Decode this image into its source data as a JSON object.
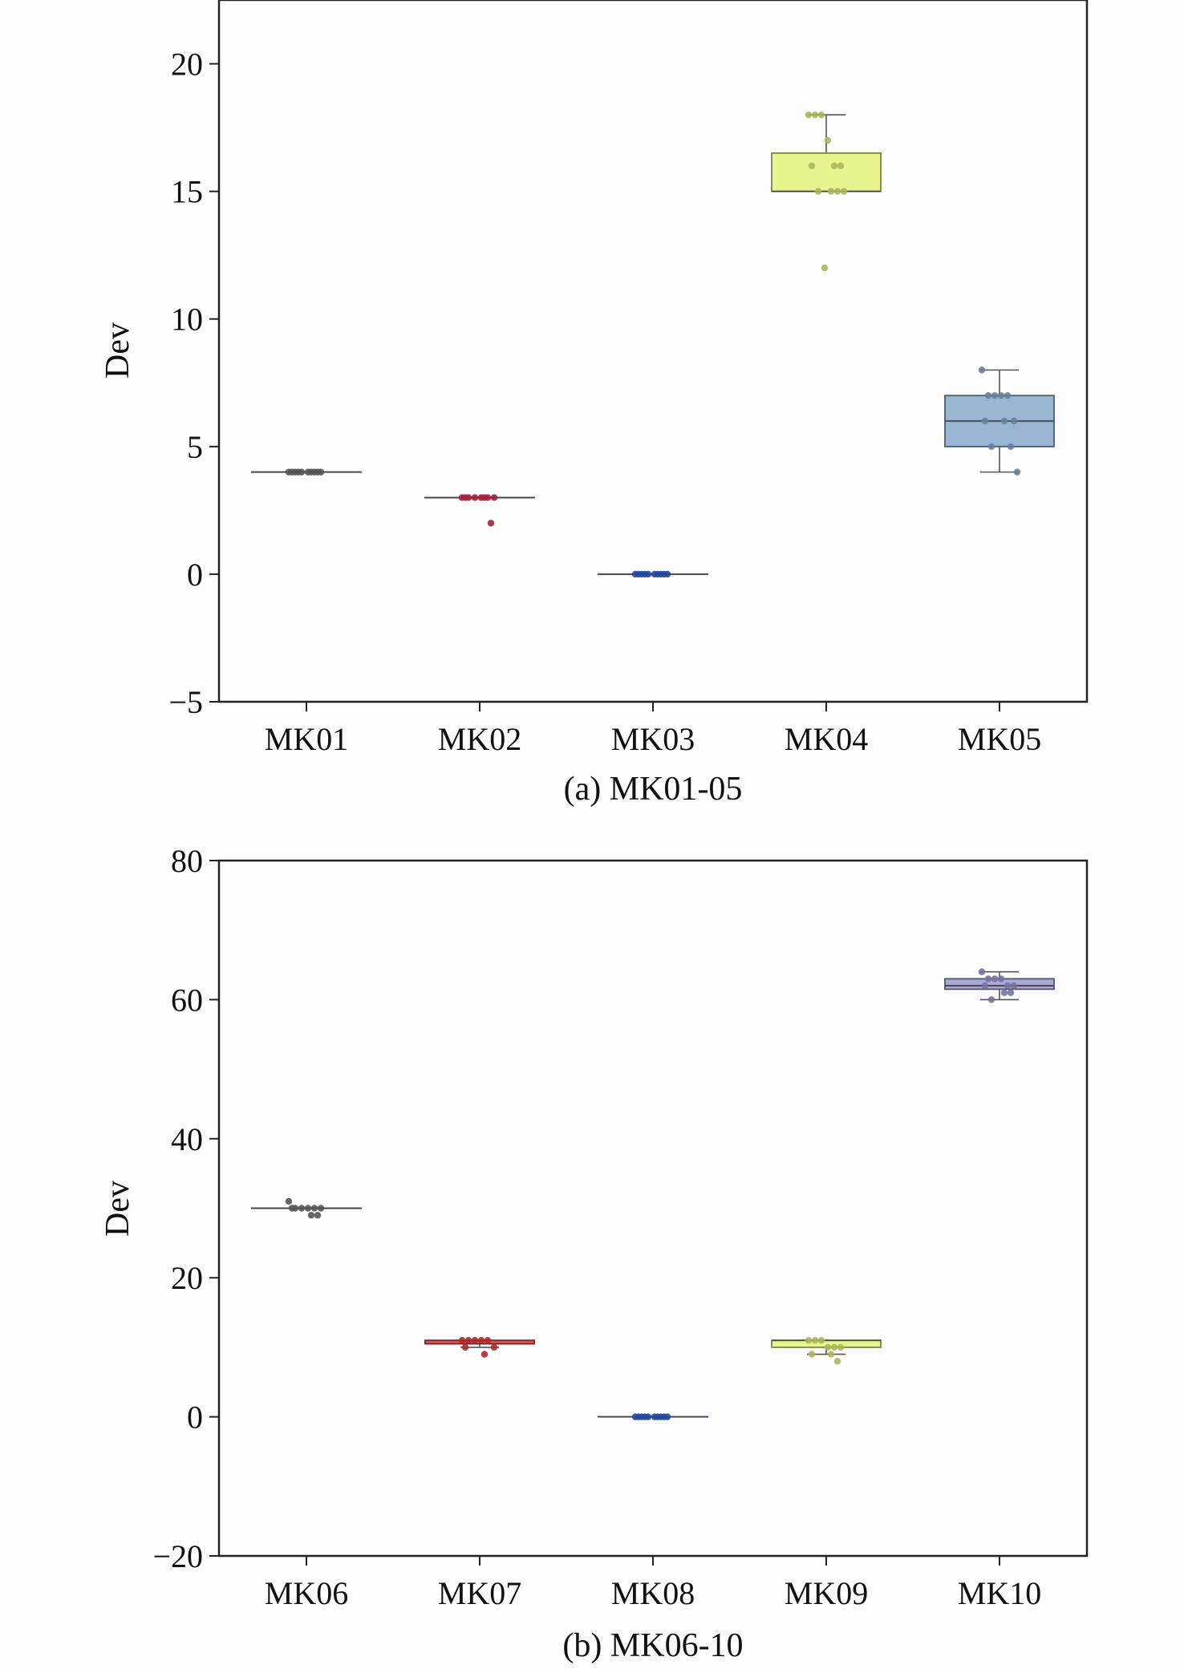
{
  "chart_data": [
    {
      "type": "box",
      "caption": "(a) MK01-05",
      "ylabel": "Dev",
      "xlabel": "",
      "ylim": [
        -5,
        22.5
      ],
      "yticks": [
        -5,
        0,
        5,
        10,
        15,
        20
      ],
      "ytick_labels": [
        "−5",
        "0",
        "5",
        "10",
        "15",
        "20"
      ],
      "grid": false,
      "categories": [
        "MK01",
        "MK02",
        "MK03",
        "MK04",
        "MK05"
      ],
      "boxes": [
        {
          "category": "MK01",
          "q1": 4,
          "median": 4,
          "q3": 4,
          "whisker_low": 4,
          "whisker_high": 4,
          "color": "#555555",
          "points": [
            4,
            4,
            4,
            4,
            4,
            4,
            4,
            4,
            4,
            4
          ]
        },
        {
          "category": "MK02",
          "q1": 3,
          "median": 3,
          "q3": 3,
          "whisker_low": 3,
          "whisker_high": 3,
          "color": "#e0284a",
          "points": [
            3,
            3,
            3,
            3,
            3,
            3,
            3,
            3,
            2
          ]
        },
        {
          "category": "MK03",
          "q1": 0,
          "median": 0,
          "q3": 0,
          "whisker_low": 0,
          "whisker_high": 0,
          "color": "#2d5fd0",
          "points": [
            0,
            0,
            0,
            0,
            0,
            0,
            0,
            0,
            0,
            0
          ]
        },
        {
          "category": "MK04",
          "q1": 15,
          "median": 15,
          "q3": 16.5,
          "whisker_low": 15,
          "whisker_high": 18,
          "color": "#e6f27a",
          "points": [
            18,
            18,
            18,
            17,
            16,
            16,
            16,
            15,
            15,
            15,
            15,
            12
          ]
        },
        {
          "category": "MK05",
          "q1": 5,
          "median": 6,
          "q3": 7,
          "whisker_low": 4,
          "whisker_high": 8,
          "color": "#8aa9cc",
          "points": [
            8,
            7,
            7,
            7,
            7,
            6,
            6,
            6,
            5,
            5,
            4
          ]
        }
      ]
    },
    {
      "type": "box",
      "caption": "(b) MK06-10",
      "ylabel": "Dev",
      "xlabel": "",
      "ylim": [
        -20,
        80
      ],
      "yticks": [
        -20,
        0,
        20,
        40,
        60,
        80
      ],
      "ytick_labels": [
        "−20",
        "0",
        "20",
        "40",
        "60",
        "80"
      ],
      "grid": false,
      "categories": [
        "MK06",
        "MK07",
        "MK08",
        "MK09",
        "MK10"
      ],
      "boxes": [
        {
          "category": "MK06",
          "q1": 30,
          "median": 30,
          "q3": 30,
          "whisker_low": 30,
          "whisker_high": 30,
          "color": "#555555",
          "points": [
            31,
            30,
            30,
            30,
            30,
            30,
            30,
            29,
            29
          ]
        },
        {
          "category": "MK07",
          "q1": 10.5,
          "median": 11,
          "q3": 11,
          "whisker_low": 10,
          "whisker_high": 11,
          "color": "#e03a3a",
          "points": [
            11,
            11,
            11,
            11,
            11,
            10,
            10,
            9
          ]
        },
        {
          "category": "MK08",
          "q1": 0,
          "median": 0,
          "q3": 0,
          "whisker_low": 0,
          "whisker_high": 0,
          "color": "#2d5fd0",
          "points": [
            0,
            0,
            0,
            0,
            0,
            0,
            0,
            0,
            0,
            0
          ]
        },
        {
          "category": "MK09",
          "q1": 10,
          "median": 11,
          "q3": 11,
          "whisker_low": 9,
          "whisker_high": 11,
          "color": "#e6f27a",
          "points": [
            11,
            11,
            11,
            10,
            10,
            10,
            9,
            9,
            8
          ]
        },
        {
          "category": "MK10",
          "q1": 61.5,
          "median": 62,
          "q3": 63,
          "whisker_low": 60,
          "whisker_high": 64,
          "color": "#9a9ad0",
          "points": [
            64,
            63,
            63,
            63,
            62,
            62,
            62,
            61,
            61,
            60
          ]
        }
      ]
    }
  ]
}
